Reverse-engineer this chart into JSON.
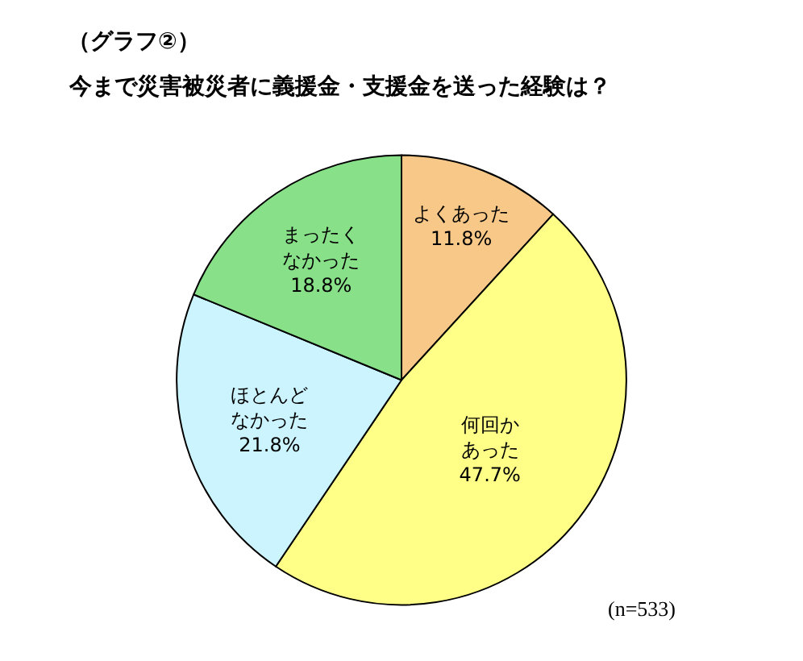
{
  "chart_data": {
    "type": "pie",
    "title": "（グラフ②）",
    "subtitle": "今まで災害被災者に義援金・支援金を送った経験は？",
    "categories": [
      "よくあった",
      "何回かあった",
      "ほとんどなかった",
      "まったくなかった"
    ],
    "values": [
      11.8,
      47.7,
      21.8,
      18.8
    ],
    "value_labels": [
      "11.8%",
      "47.7%",
      "21.8%",
      "18.8%"
    ],
    "colors": [
      "#f8c888",
      "#ffff88",
      "#ccf4ff",
      "#88e088"
    ],
    "annotations": [
      "(n=533)"
    ],
    "legend": false
  }
}
